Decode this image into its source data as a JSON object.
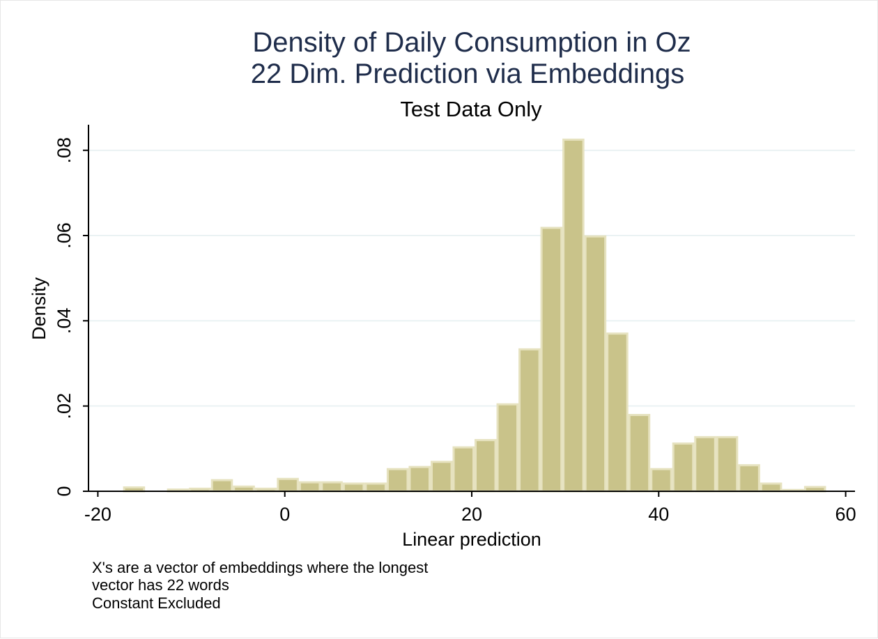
{
  "chart_data": {
    "type": "bar",
    "title": [
      "Density of Daily Consumption in Oz",
      "22 Dim. Prediction via Embeddings"
    ],
    "subtitle": "Test Data Only",
    "xlabel": "Linear prediction",
    "ylabel": "Density",
    "xlim": [
      -21,
      61
    ],
    "ylim": [
      0,
      0.086
    ],
    "xticks": [
      -20,
      0,
      20,
      40,
      60
    ],
    "xtick_labels": [
      "-20",
      "0",
      "20",
      "40",
      "60"
    ],
    "yticks": [
      0,
      0.02,
      0.04,
      0.06,
      0.08
    ],
    "ytick_labels": [
      "0",
      ".02",
      ".04",
      ".06",
      ".08"
    ],
    "grid": true,
    "bin_width": 2.35,
    "bins": [
      {
        "x0": -17.3,
        "value": 0.0009
      },
      {
        "x0": -12.6,
        "value": 0.0004
      },
      {
        "x0": -10.25,
        "value": 0.0006
      },
      {
        "x0": -7.9,
        "value": 0.0026
      },
      {
        "x0": -5.55,
        "value": 0.0011
      },
      {
        "x0": -3.2,
        "value": 0.0006
      },
      {
        "x0": -0.85,
        "value": 0.0029
      },
      {
        "x0": 1.5,
        "value": 0.0021
      },
      {
        "x0": 3.85,
        "value": 0.0021
      },
      {
        "x0": 6.2,
        "value": 0.0018
      },
      {
        "x0": 8.55,
        "value": 0.0018
      },
      {
        "x0": 10.9,
        "value": 0.0052
      },
      {
        "x0": 13.25,
        "value": 0.0057
      },
      {
        "x0": 15.6,
        "value": 0.0069
      },
      {
        "x0": 17.95,
        "value": 0.0103
      },
      {
        "x0": 20.3,
        "value": 0.012
      },
      {
        "x0": 22.65,
        "value": 0.0204
      },
      {
        "x0": 25.0,
        "value": 0.0333
      },
      {
        "x0": 27.35,
        "value": 0.0618
      },
      {
        "x0": 29.7,
        "value": 0.0825
      },
      {
        "x0": 32.05,
        "value": 0.0598
      },
      {
        "x0": 34.4,
        "value": 0.037
      },
      {
        "x0": 36.75,
        "value": 0.0179
      },
      {
        "x0": 39.1,
        "value": 0.0052
      },
      {
        "x0": 41.45,
        "value": 0.0112
      },
      {
        "x0": 43.8,
        "value": 0.0127
      },
      {
        "x0": 46.15,
        "value": 0.0127
      },
      {
        "x0": 48.5,
        "value": 0.0061
      },
      {
        "x0": 50.85,
        "value": 0.0018
      },
      {
        "x0": 53.2,
        "value": 0.0003
      },
      {
        "x0": 55.55,
        "value": 0.001
      }
    ],
    "colors": {
      "bar_fill": "#c9c38a",
      "bar_edge": "#e6e2bf",
      "title": "#1f2d4b",
      "grid": "#eaf2f3"
    }
  },
  "notes": [
    "X's are a vector of embeddings where the longest",
    "vector has 22 words",
    "Constant Excluded"
  ]
}
